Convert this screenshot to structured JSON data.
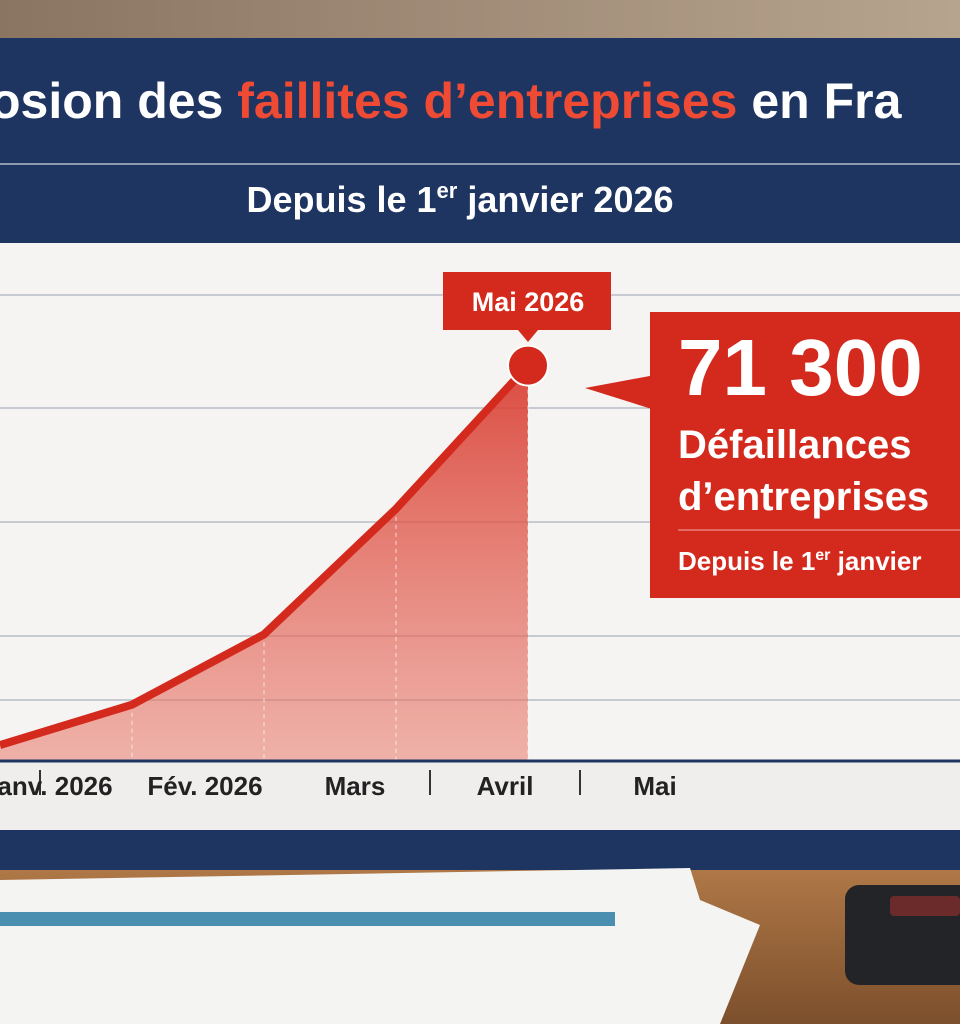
{
  "chart_data": {
    "type": "area-line",
    "title": [
      "osion des ",
      "faillites d’entreprises",
      " en Fra"
    ],
    "subtitle": [
      "Depuis le 1",
      "er",
      " janvier 2026"
    ],
    "categories": [
      "anv. 2026",
      "Fév. 2026",
      "Mars",
      "Avril",
      "Mai"
    ],
    "values": [
      2700,
      10000,
      22700,
      45400,
      71300
    ],
    "value_labels": [
      null,
      null,
      null,
      null,
      "71 300"
    ],
    "peak_label": "Mai 2026",
    "callout": {
      "lines": [
        "Défaillances",
        "d’entreprises"
      ],
      "note": [
        "Depuis le 1",
        "er",
        " janvier"
      ]
    },
    "color": "#d42a1e",
    "ylim": [
      0,
      94000
    ],
    "grid": true
  }
}
